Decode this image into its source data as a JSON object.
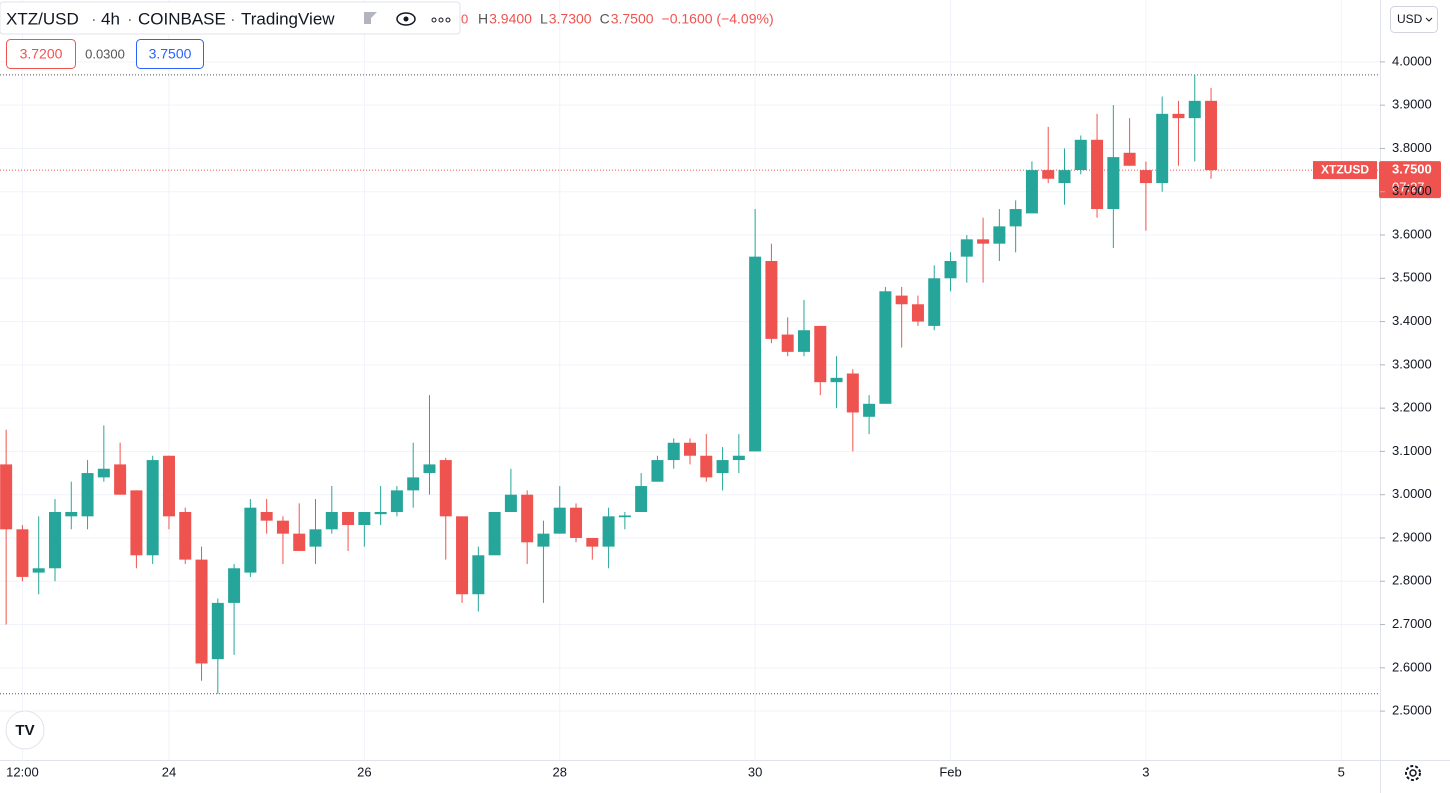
{
  "header": {
    "symbol": "XTZ/USD",
    "interval": "4h",
    "exchange": "COINBASE",
    "source": "TradingView",
    "open_fragment": "0",
    "quote": [
      {
        "label": "H",
        "value": "3.9400"
      },
      {
        "label": "L",
        "value": "3.7300"
      },
      {
        "label": "C",
        "value": "3.7500"
      }
    ],
    "change": "−0.1600 (−4.09%)",
    "bid": "3.7200",
    "spread": "0.0300",
    "ask": "3.7500"
  },
  "currency": "USD",
  "price_tag": {
    "symbol": "XTZUSD",
    "price": "3.7500",
    "countdown": "07:27"
  },
  "chart_data": {
    "type": "candlestick",
    "up_color": "#26a69a",
    "down_color": "#ef5350",
    "grid": true,
    "categories": [
      null,
      "12:00",
      null,
      null,
      null,
      null,
      null,
      null,
      null,
      null,
      "24",
      null,
      null,
      null,
      null,
      null,
      null,
      null,
      null,
      null,
      null,
      null,
      "26",
      null,
      null,
      null,
      null,
      null,
      null,
      null,
      null,
      null,
      null,
      null,
      "28",
      null,
      null,
      null,
      null,
      null,
      null,
      null,
      null,
      null,
      null,
      null,
      "30",
      null,
      null,
      null,
      null,
      null,
      null,
      null,
      null,
      null,
      null,
      null,
      "Feb",
      null,
      null,
      null,
      null,
      null,
      null,
      null,
      null,
      null,
      null,
      null,
      "3",
      null,
      null,
      null,
      null,
      null,
      null,
      null,
      null,
      null,
      null,
      null,
      "5",
      null,
      null
    ],
    "open": [
      3.07,
      2.92,
      2.82,
      2.83,
      2.95,
      2.95,
      3.04,
      3.07,
      3.01,
      2.86,
      3.09,
      2.96,
      2.85,
      2.62,
      2.75,
      2.82,
      2.96,
      2.94,
      2.91,
      2.88,
      2.92,
      2.96,
      2.93,
      2.955,
      2.96,
      3.01,
      3.05,
      3.08,
      2.95,
      2.77,
      2.86,
      2.96,
      3.0,
      2.88,
      2.91,
      2.97,
      2.9,
      2.88,
      2.948,
      2.96,
      3.03,
      3.08,
      3.12,
      3.09,
      3.05,
      3.08,
      3.1,
      3.54,
      3.37,
      3.33,
      3.39,
      3.26,
      3.28,
      3.18,
      3.21,
      3.46,
      3.44,
      3.39,
      3.5,
      3.55,
      3.59,
      3.58,
      3.62,
      3.65,
      3.75,
      3.72,
      3.75,
      3.82,
      3.66,
      3.79,
      3.75,
      3.72,
      3.88,
      3.87,
      3.91,
      null,
      null,
      null,
      null,
      null,
      null,
      null,
      null,
      null,
      null
    ],
    "high": [
      3.15,
      2.93,
      2.95,
      2.99,
      3.03,
      3.08,
      3.16,
      3.12,
      3.01,
      3.09,
      3.09,
      2.97,
      2.88,
      2.76,
      2.84,
      2.99,
      2.99,
      2.95,
      2.98,
      2.99,
      3.02,
      2.96,
      2.96,
      3.02,
      3.02,
      3.12,
      3.23,
      3.085,
      2.95,
      2.88,
      2.96,
      3.06,
      3.01,
      2.94,
      3.02,
      2.98,
      2.9,
      2.97,
      2.96,
      3.05,
      3.09,
      3.13,
      3.13,
      3.14,
      3.11,
      3.14,
      3.66,
      3.58,
      3.41,
      3.45,
      3.39,
      3.32,
      3.29,
      3.23,
      3.48,
      3.48,
      3.46,
      3.53,
      3.56,
      3.6,
      3.64,
      3.66,
      3.68,
      3.77,
      3.85,
      3.8,
      3.83,
      3.88,
      3.9,
      3.87,
      3.77,
      3.92,
      3.91,
      3.97,
      3.94,
      null,
      null,
      null,
      null,
      null,
      null,
      null,
      null,
      null,
      null
    ],
    "low": [
      2.7,
      2.8,
      2.77,
      2.8,
      2.92,
      2.92,
      3.03,
      3.0,
      2.83,
      2.84,
      2.92,
      2.84,
      2.57,
      2.54,
      2.63,
      2.81,
      2.91,
      2.84,
      2.87,
      2.84,
      2.91,
      2.87,
      2.88,
      2.93,
      2.95,
      2.97,
      3.0,
      2.85,
      2.75,
      2.73,
      2.86,
      2.96,
      2.84,
      2.75,
      2.91,
      2.89,
      2.85,
      2.83,
      2.92,
      2.96,
      3.03,
      3.06,
      3.07,
      3.03,
      3.01,
      3.05,
      3.1,
      3.35,
      3.32,
      3.32,
      3.23,
      3.2,
      3.1,
      3.14,
      3.21,
      3.34,
      3.39,
      3.38,
      3.47,
      3.49,
      3.49,
      3.54,
      3.56,
      3.65,
      3.72,
      3.67,
      3.74,
      3.64,
      3.57,
      3.76,
      3.61,
      3.7,
      3.76,
      3.77,
      3.73,
      null,
      null,
      null,
      null,
      null,
      null,
      null,
      null,
      null,
      null
    ],
    "close": [
      2.92,
      2.81,
      2.83,
      2.96,
      2.96,
      3.05,
      3.06,
      3.0,
      2.86,
      3.08,
      2.95,
      2.85,
      2.61,
      2.75,
      2.83,
      2.97,
      2.94,
      2.91,
      2.87,
      2.92,
      2.96,
      2.93,
      2.96,
      2.96,
      3.01,
      3.04,
      3.07,
      2.95,
      2.77,
      2.86,
      2.96,
      3.0,
      2.89,
      2.91,
      2.97,
      2.9,
      2.88,
      2.95,
      2.952,
      3.02,
      3.08,
      3.12,
      3.09,
      3.04,
      3.08,
      3.09,
      3.55,
      3.36,
      3.33,
      3.38,
      3.26,
      3.27,
      3.19,
      3.21,
      3.47,
      3.44,
      3.4,
      3.5,
      3.54,
      3.59,
      3.58,
      3.62,
      3.66,
      3.75,
      3.73,
      3.75,
      3.82,
      3.66,
      3.78,
      3.76,
      3.72,
      3.88,
      3.87,
      3.91,
      3.75,
      null,
      null,
      null,
      null,
      null,
      null,
      null,
      null,
      null,
      null
    ],
    "ylim": [
      2.387,
      4.143
    ],
    "yticks": [
      {
        "value": 2.5,
        "label": "2.5000"
      },
      {
        "value": 2.6,
        "label": "2.6000"
      },
      {
        "value": 2.7,
        "label": "2.7000"
      },
      {
        "value": 2.8,
        "label": "2.8000"
      },
      {
        "value": 2.9,
        "label": "2.9000"
      },
      {
        "value": 3.0,
        "label": "3.0000"
      },
      {
        "value": 3.1,
        "label": "3.1000"
      },
      {
        "value": 3.2,
        "label": "3.2000"
      },
      {
        "value": 3.3,
        "label": "3.3000"
      },
      {
        "value": 3.4,
        "label": "3.4000"
      },
      {
        "value": 3.5,
        "label": "3.5000"
      },
      {
        "value": 3.6,
        "label": "3.6000"
      },
      {
        "value": 3.7,
        "label": "3.7000"
      },
      {
        "value": 3.8,
        "label": "3.8000"
      },
      {
        "value": 3.9,
        "label": "3.9000"
      },
      {
        "value": 4.0,
        "label": "4.0000"
      }
    ]
  }
}
